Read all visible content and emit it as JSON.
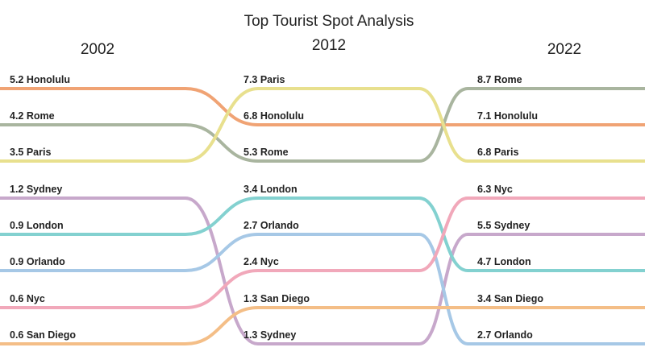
{
  "chart_data": {
    "type": "bump",
    "title": "Top Tourist Spot Analysis",
    "years": [
      "2002",
      "2012",
      "2022"
    ],
    "series": [
      {
        "name": "Honolulu",
        "color": "#f0a374",
        "values": [
          5.2,
          6.8,
          7.1
        ]
      },
      {
        "name": "Rome",
        "color": "#a9b59f",
        "values": [
          4.2,
          5.3,
          8.7
        ]
      },
      {
        "name": "Paris",
        "color": "#e8e08e",
        "values": [
          3.5,
          7.3,
          6.8
        ]
      },
      {
        "name": "Sydney",
        "color": "#c7a8cb",
        "values": [
          1.2,
          1.3,
          5.5
        ]
      },
      {
        "name": "London",
        "color": "#83d1d0",
        "values": [
          0.9,
          3.4,
          4.7
        ]
      },
      {
        "name": "Orlando",
        "color": "#a6c8e6",
        "values": [
          0.9,
          2.7,
          2.7
        ]
      },
      {
        "name": "Nyc",
        "color": "#f1a8ba",
        "values": [
          0.6,
          2.4,
          6.3
        ]
      },
      {
        "name": "San Diego",
        "color": "#f4be87",
        "values": [
          0.6,
          1.3,
          3.4
        ]
      }
    ],
    "ranks": [
      [
        "Honolulu",
        "Rome",
        "Paris",
        "Sydney",
        "London",
        "Orlando",
        "Nyc",
        "San Diego"
      ],
      [
        "Paris",
        "Honolulu",
        "Rome",
        "London",
        "Orlando",
        "Nyc",
        "San Diego",
        "Sydney"
      ],
      [
        "Rome",
        "Honolulu",
        "Paris",
        "Nyc",
        "Sydney",
        "London",
        "San Diego",
        "Orlando"
      ]
    ]
  }
}
